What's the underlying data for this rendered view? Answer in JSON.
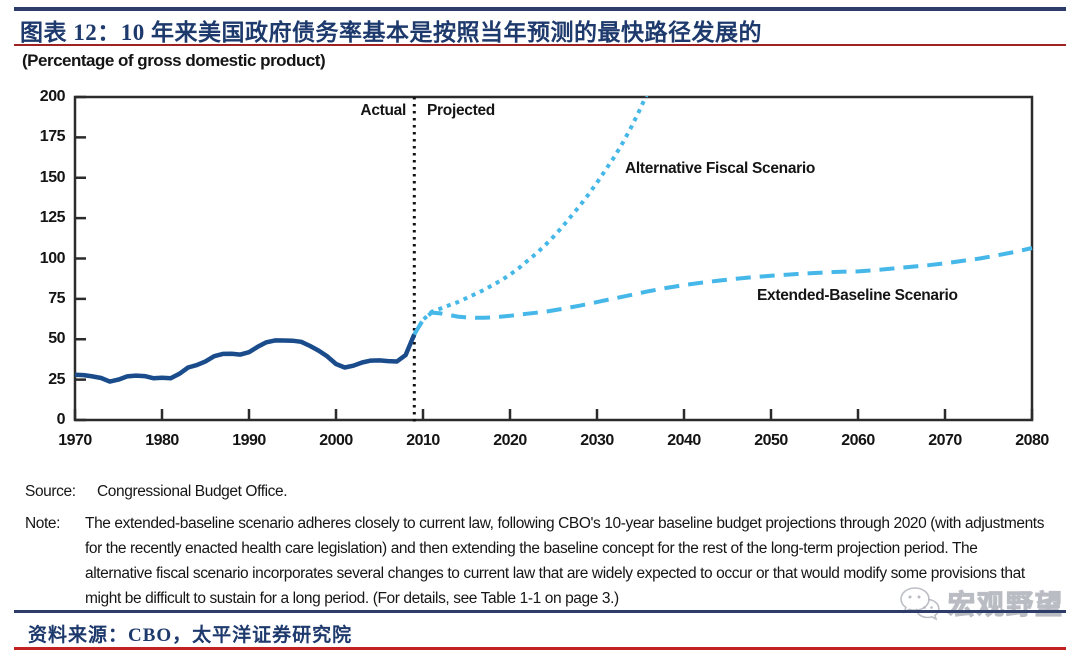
{
  "header": {
    "title": "图表 12：10 年来美国政府债务率基本是按照当年预测的最快路径发展的"
  },
  "chart_data": {
    "type": "line",
    "unit_label": "(Percentage of gross domestic product)",
    "xlim": [
      1970,
      2080
    ],
    "ylim": [
      0,
      200
    ],
    "xticks": [
      1970,
      1980,
      1990,
      2000,
      2010,
      2020,
      2030,
      2040,
      2050,
      2060,
      2070,
      2080
    ],
    "yticks": [
      0,
      25,
      50,
      75,
      100,
      125,
      150,
      175,
      200
    ],
    "grid": false,
    "divider": {
      "x": 2009,
      "left_label": "Actual",
      "right_label": "Projected",
      "style": "dotted-vertical"
    },
    "series": [
      {
        "name": "Actual",
        "color": "#1a4c8c",
        "style": "solid",
        "points": [
          [
            1970,
            28
          ],
          [
            1971,
            27.8
          ],
          [
            1972,
            27
          ],
          [
            1973,
            26
          ],
          [
            1974,
            23.8
          ],
          [
            1975,
            25
          ],
          [
            1976,
            27
          ],
          [
            1977,
            27.5
          ],
          [
            1978,
            27.2
          ],
          [
            1979,
            25.9
          ],
          [
            1980,
            26.1
          ],
          [
            1981,
            25.8
          ],
          [
            1982,
            28.6
          ],
          [
            1983,
            32.5
          ],
          [
            1984,
            34
          ],
          [
            1985,
            36.3
          ],
          [
            1986,
            39.5
          ],
          [
            1987,
            40.9
          ],
          [
            1988,
            41
          ],
          [
            1989,
            40.5
          ],
          [
            1990,
            42
          ],
          [
            1991,
            45.3
          ],
          [
            1992,
            48.1
          ],
          [
            1993,
            49.3
          ],
          [
            1994,
            49.2
          ],
          [
            1995,
            49.1
          ],
          [
            1996,
            48.4
          ],
          [
            1997,
            45.9
          ],
          [
            1998,
            43
          ],
          [
            1999,
            39.4
          ],
          [
            2000,
            34.7
          ],
          [
            2001,
            32.5
          ],
          [
            2002,
            33.6
          ],
          [
            2003,
            35.6
          ],
          [
            2004,
            36.8
          ],
          [
            2005,
            36.9
          ],
          [
            2006,
            36.5
          ],
          [
            2007,
            36.2
          ],
          [
            2008,
            40.2
          ],
          [
            2009,
            53
          ]
        ]
      },
      {
        "name": "Alternative Fiscal Scenario",
        "color": "#45b7e8",
        "style": "dotted",
        "points": [
          [
            2009,
            53
          ],
          [
            2010,
            62
          ],
          [
            2011,
            67
          ],
          [
            2012,
            69
          ],
          [
            2013,
            71
          ],
          [
            2014,
            73
          ],
          [
            2015,
            75.5
          ],
          [
            2016,
            78
          ],
          [
            2017,
            80.5
          ],
          [
            2018,
            83.5
          ],
          [
            2019,
            86.5
          ],
          [
            2020,
            90
          ],
          [
            2021,
            94
          ],
          [
            2022,
            98.5
          ],
          [
            2023,
            103
          ],
          [
            2024,
            108
          ],
          [
            2025,
            113.5
          ],
          [
            2026,
            119.5
          ],
          [
            2027,
            126
          ],
          [
            2028,
            132.5
          ],
          [
            2029,
            139.5
          ],
          [
            2030,
            147
          ],
          [
            2031,
            155
          ],
          [
            2032,
            163
          ],
          [
            2033,
            172
          ],
          [
            2034,
            182
          ],
          [
            2035,
            193
          ],
          [
            2036,
            205
          ],
          [
            2037,
            218
          ]
        ]
      },
      {
        "name": "Extended-Baseline Scenario",
        "color": "#45b7e8",
        "style": "dashed",
        "points": [
          [
            2009,
            53
          ],
          [
            2010,
            62
          ],
          [
            2011,
            66.5
          ],
          [
            2012,
            66
          ],
          [
            2013,
            65
          ],
          [
            2014,
            64
          ],
          [
            2015,
            63.5
          ],
          [
            2016,
            63.3
          ],
          [
            2017,
            63.3
          ],
          [
            2018,
            63.5
          ],
          [
            2019,
            64
          ],
          [
            2020,
            64.5
          ],
          [
            2022,
            65.8
          ],
          [
            2024,
            67
          ],
          [
            2026,
            68.8
          ],
          [
            2028,
            70.8
          ],
          [
            2030,
            73
          ],
          [
            2032,
            75.3
          ],
          [
            2034,
            77.5
          ],
          [
            2036,
            79.8
          ],
          [
            2038,
            81.8
          ],
          [
            2040,
            83.5
          ],
          [
            2042,
            85
          ],
          [
            2044,
            86.3
          ],
          [
            2046,
            87.5
          ],
          [
            2048,
            88.5
          ],
          [
            2050,
            89.3
          ],
          [
            2052,
            90
          ],
          [
            2054,
            90.8
          ],
          [
            2056,
            91.3
          ],
          [
            2058,
            91.8
          ],
          [
            2060,
            92
          ],
          [
            2062,
            92.8
          ],
          [
            2064,
            93.8
          ],
          [
            2066,
            94.8
          ],
          [
            2068,
            95.8
          ],
          [
            2070,
            97
          ],
          [
            2072,
            98.5
          ],
          [
            2074,
            100
          ],
          [
            2076,
            102
          ],
          [
            2078,
            104
          ],
          [
            2080,
            106.5
          ]
        ]
      }
    ],
    "frame_color": "#2b2b2b",
    "divider_color": "#111111"
  },
  "footer": {
    "source_label": "Source:",
    "source_text": "Congressional Budget Office.",
    "note_label": "Note:",
    "note_text": "The extended-baseline scenario adheres closely to current law, following CBO's 10-year baseline budget projections through 2020 (with adjustments for the recently enacted health care legislation) and then extending the baseline concept for the rest of the long-term projection period. The alternative fiscal scenario incorporates several changes to current law that are widely expected to occur or that would modify some provisions that might be difficult to sustain for a long period. (For details, see Table 1-1 on page 3.)",
    "source_cn": "资料来源：CBO，太平洋证券研究院"
  },
  "watermark": {
    "text": "宏观野望",
    "icon": "wechat-icon"
  }
}
